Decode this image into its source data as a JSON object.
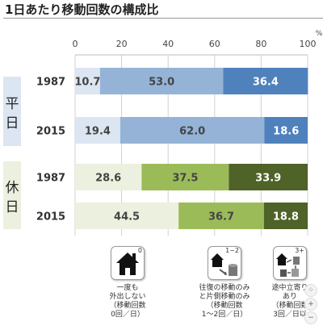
{
  "page": {
    "title": "1日あたり移動回数の構成比"
  },
  "chart_data": {
    "type": "bar",
    "orientation": "horizontal",
    "stacked": true,
    "title": "1日あたり移動回数の構成比",
    "xlabel": "%",
    "xlim": [
      0,
      100
    ],
    "xticks": [
      0,
      20,
      40,
      60,
      80,
      100
    ],
    "grid": true,
    "groups": [
      {
        "label": "平日",
        "color": "#dce6f2",
        "rows": [
          {
            "year": "1987",
            "values": [
              10.7,
              53.0,
              36.4
            ],
            "labels": [
              "10.7",
              "53.0",
              "36.4"
            ]
          },
          {
            "year": "2015",
            "values": [
              19.4,
              62.0,
              18.6
            ],
            "labels": [
              "19.4",
              "62.0",
              "18.6"
            ]
          }
        ],
        "segment_colors": [
          "#dce6f2",
          "#95b3d7",
          "#4f81bd"
        ],
        "label_colors": [
          "#444444",
          "#444444",
          "#ffffff"
        ]
      },
      {
        "label": "休日",
        "color": "#ebf1de",
        "rows": [
          {
            "year": "1987",
            "values": [
              28.6,
              37.5,
              33.9
            ],
            "labels": [
              "28.6",
              "37.5",
              "33.9"
            ]
          },
          {
            "year": "2015",
            "values": [
              44.5,
              36.7,
              18.8
            ],
            "labels": [
              "44.5",
              "36.7",
              "18.8"
            ]
          }
        ],
        "segment_colors": [
          "#ebf1de",
          "#9bbb59",
          "#4f6228"
        ],
        "label_colors": [
          "#444444",
          "#444444",
          "#ffffff"
        ]
      }
    ]
  },
  "legend": [
    {
      "icon": "house-icon",
      "badge": "0",
      "text": "一度も\n外出しない\n（移動回数\n0回／日）"
    },
    {
      "icon": "house-building-one-two-icon",
      "badge": "1~2",
      "text": "往復の移動のみ\nと片側移動のみ\n（移動回数\n1～2回／日）"
    },
    {
      "icon": "house-buildings-three-plus-icon",
      "badge": "3+",
      "text": "途中立寄り\nあり\n（移動回数\n3回／日以"
    }
  ],
  "controls": {
    "zoom_in": "+",
    "zoom_out": "−"
  }
}
